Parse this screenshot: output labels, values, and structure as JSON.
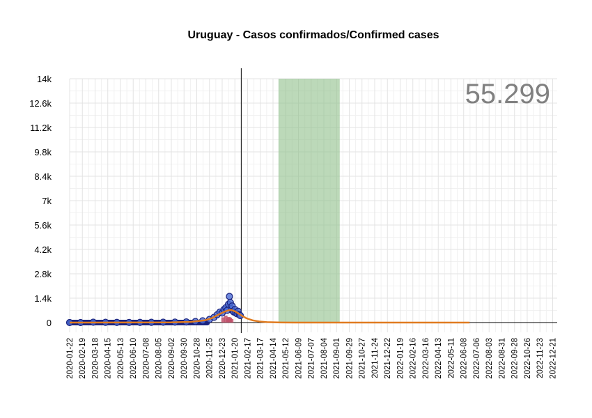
{
  "chart_data": {
    "type": "line",
    "title": "Uruguay - Casos confirmados/Confirmed cases",
    "annotation": "55.299",
    "xlabel": "",
    "ylabel": "",
    "x_range": [
      "2020-01-22",
      "2022-12-31"
    ],
    "ylim": [
      0,
      14000
    ],
    "y_ticks": [
      0,
      1400,
      2800,
      4200,
      5600,
      7000,
      8400,
      9800,
      11200,
      12600,
      14000
    ],
    "y_tick_labels": [
      "0",
      "1.4k",
      "2.8k",
      "4.2k",
      "5.6k",
      "7k",
      "8.4k",
      "9.8k",
      "11.2k",
      "12.6k",
      "14k"
    ],
    "x_tick_labels": [
      "2020-01-22",
      "2020-02-19",
      "2020-03-18",
      "2020-04-15",
      "2020-05-13",
      "2020-06-10",
      "2020-07-08",
      "2020-08-05",
      "2020-09-02",
      "2020-09-30",
      "2020-10-28",
      "2020-11-25",
      "2020-12-23",
      "2021-01-20",
      "2021-02-17",
      "2021-03-17",
      "2021-04-14",
      "2021-05-12",
      "2021-06-09",
      "2021-07-07",
      "2021-08-04",
      "2021-09-01",
      "2021-09-29",
      "2021-10-27",
      "2021-11-24",
      "2021-12-22",
      "2022-01-19",
      "2022-02-16",
      "2022-03-16",
      "2022-04-13",
      "2022-05-11",
      "2022-06-08",
      "2022-07-06",
      "2022-08-03",
      "2022-08-31",
      "2022-09-28",
      "2022-10-26",
      "2022-11-23",
      "2022-12-21"
    ],
    "vertical_line_date": "2021-02-03",
    "shaded_range": {
      "start": "2021-04-26",
      "end": "2021-09-08",
      "color": "#8fbf8a"
    },
    "series": [
      {
        "kind": "points",
        "color": "#4a6cd4",
        "points": [
          [
            "2020-01-22",
            0
          ],
          [
            "2020-02-15",
            0
          ],
          [
            "2020-03-14",
            20
          ],
          [
            "2020-04-10",
            15
          ],
          [
            "2020-05-05",
            10
          ],
          [
            "2020-06-01",
            8
          ],
          [
            "2020-06-25",
            10
          ],
          [
            "2020-07-20",
            15
          ],
          [
            "2020-08-15",
            20
          ],
          [
            "2020-09-10",
            25
          ],
          [
            "2020-10-05",
            35
          ],
          [
            "2020-10-25",
            60
          ],
          [
            "2020-11-10",
            100
          ],
          [
            "2020-11-25",
            180
          ],
          [
            "2020-12-05",
            300
          ],
          [
            "2020-12-12",
            450
          ],
          [
            "2020-12-18",
            600
          ],
          [
            "2020-12-23",
            550
          ],
          [
            "2020-12-27",
            750
          ],
          [
            "2020-12-31",
            850
          ],
          [
            "2021-01-03",
            700
          ],
          [
            "2021-01-06",
            1050
          ],
          [
            "2021-01-08",
            1500
          ],
          [
            "2021-01-10",
            1150
          ],
          [
            "2021-01-12",
            800
          ],
          [
            "2021-01-14",
            950
          ],
          [
            "2021-01-16",
            650
          ],
          [
            "2021-01-18",
            600
          ],
          [
            "2021-01-20",
            750
          ],
          [
            "2021-01-22",
            550
          ],
          [
            "2021-01-25",
            500
          ],
          [
            "2021-01-27",
            650
          ],
          [
            "2021-01-30",
            450
          ],
          [
            "2021-02-01",
            400
          ]
        ]
      },
      {
        "kind": "bars",
        "color": "#c0506a",
        "points": [
          [
            "2020-12-25",
            300
          ],
          [
            "2020-12-31",
            400
          ],
          [
            "2021-01-04",
            250
          ],
          [
            "2021-01-07",
            320
          ],
          [
            "2021-01-10",
            280
          ],
          [
            "2021-01-13",
            200
          ]
        ]
      },
      {
        "kind": "line",
        "color": "#e07b20",
        "points": [
          [
            "2020-01-22",
            0
          ],
          [
            "2020-09-01",
            10
          ],
          [
            "2020-10-15",
            40
          ],
          [
            "2020-11-15",
            130
          ],
          [
            "2020-12-01",
            260
          ],
          [
            "2020-12-15",
            460
          ],
          [
            "2020-12-28",
            620
          ],
          [
            "2021-01-05",
            700
          ],
          [
            "2021-01-12",
            720
          ],
          [
            "2021-01-20",
            650
          ],
          [
            "2021-01-28",
            520
          ],
          [
            "2021-02-05",
            380
          ],
          [
            "2021-02-15",
            240
          ],
          [
            "2021-02-28",
            130
          ],
          [
            "2021-03-15",
            60
          ],
          [
            "2021-04-01",
            25
          ],
          [
            "2021-05-01",
            5
          ],
          [
            "2021-06-01",
            1
          ],
          [
            "2022-06-21",
            0
          ]
        ]
      }
    ]
  }
}
